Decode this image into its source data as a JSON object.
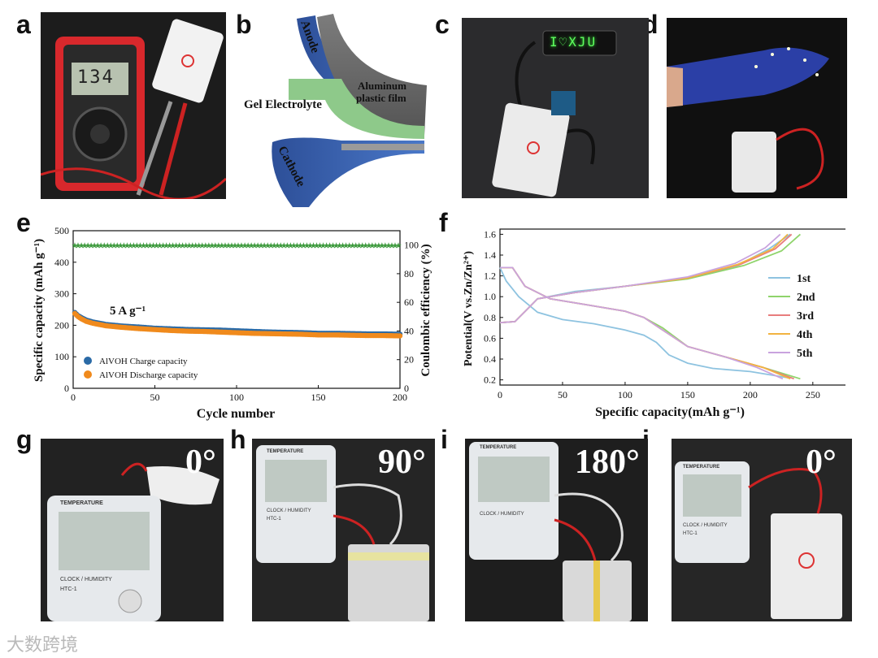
{
  "panels": [
    "a",
    "b",
    "c",
    "d",
    "e",
    "f",
    "g",
    "h",
    "i",
    "j"
  ],
  "panel_a": {
    "display": "134"
  },
  "panel_b": {
    "anode": "Anode",
    "cathode": "Cathode",
    "gel": "Gel Electrolyte",
    "film_line1": "Aluminum",
    "film_line2": "plastic film"
  },
  "panel_c": {
    "led_text": "I♡XJU"
  },
  "panel_g": {
    "angle": "0°",
    "thermo_title": "TEMPERATURE",
    "thermo_sub": "CLOCK / HUMIDITY",
    "thermo_model": "HTC-1"
  },
  "panel_h": {
    "angle": "90°",
    "thermo_title": "TEMPERATURE",
    "thermo_sub": "CLOCK / HUMIDITY",
    "thermo_model": "HTC-1"
  },
  "panel_i": {
    "angle": "180°",
    "thermo_title": "TEMPERATURE",
    "thermo_sub": "CLOCK / HUMIDITY"
  },
  "panel_j": {
    "angle": "0°",
    "thermo_title": "TEMPERATURE",
    "thermo_sub": "CLOCK / HUMIDITY",
    "thermo_model": "HTC-1"
  },
  "watermark": "大数跨境",
  "chart_data": [
    {
      "type": "scatter",
      "panel": "e",
      "xlabel": "Cycle number",
      "ylabel": "Specific capacity (mAh g⁻¹)",
      "ylabel_right": "Coulombic efficiency (%)",
      "xlim": [
        0,
        200
      ],
      "ylim": [
        0,
        500
      ],
      "ylim_right": [
        0,
        110
      ],
      "xticks": [
        0,
        50,
        100,
        150,
        200
      ],
      "yticks": [
        0,
        100,
        200,
        300,
        400,
        500
      ],
      "yticks_right": [
        0,
        20,
        40,
        60,
        80,
        100
      ],
      "annotation": "5 A g⁻¹",
      "legend": [
        "AlVOH Charge capacity",
        "AlVOH Discharge capacity"
      ],
      "series": [
        {
          "name": "AlVOH Charge capacity",
          "color": "#2a6aa6",
          "x": [
            1,
            3,
            5,
            8,
            12,
            20,
            30,
            40,
            50,
            60,
            70,
            80,
            90,
            100,
            110,
            120,
            130,
            140,
            150,
            160,
            170,
            180,
            190,
            200
          ],
          "y": [
            238,
            228,
            222,
            214,
            208,
            200,
            195,
            192,
            188,
            186,
            184,
            183,
            182,
            180,
            178,
            176,
            175,
            174,
            172,
            172,
            171,
            170,
            170,
            169
          ]
        },
        {
          "name": "AlVOH Discharge capacity",
          "color": "#f08a1c",
          "x": [
            1,
            3,
            5,
            8,
            12,
            20,
            30,
            40,
            50,
            60,
            70,
            80,
            90,
            100,
            110,
            120,
            130,
            140,
            150,
            160,
            170,
            180,
            190,
            200
          ],
          "y": [
            240,
            230,
            223,
            215,
            209,
            201,
            196,
            192,
            189,
            186,
            184,
            183,
            181,
            179,
            177,
            176,
            175,
            174,
            172,
            172,
            171,
            170,
            170,
            169
          ]
        },
        {
          "name": "Coulombic efficiency",
          "color": "#3f9b3f",
          "axis": "right",
          "x": [
            1,
            20,
            40,
            60,
            80,
            100,
            120,
            140,
            160,
            180,
            200
          ],
          "y": [
            100,
            100,
            100,
            100,
            100,
            100,
            100,
            100,
            100,
            100,
            100
          ]
        }
      ]
    },
    {
      "type": "line",
      "panel": "f",
      "xlabel": "Specific capacity(mAh g⁻¹)",
      "ylabel": "Potential(V vs.Zn/Zn²⁺)",
      "xlim": [
        0,
        280
      ],
      "ylim": [
        0.15,
        1.65
      ],
      "xticks": [
        0,
        50,
        100,
        150,
        200,
        250
      ],
      "yticks": [
        0.2,
        0.4,
        0.6,
        0.8,
        1.0,
        1.2,
        1.4,
        1.6
      ],
      "legend": [
        "1st",
        "2nd",
        "3rd",
        "4th",
        "5th"
      ],
      "series": [
        {
          "name": "1st",
          "color": "#8ec3e0",
          "discharge": {
            "x": [
              0,
              5,
              15,
              30,
              50,
              75,
              100,
              115,
              125,
              135,
              150,
              170,
              200,
              230
            ],
            "y": [
              1.28,
              1.15,
              1.0,
              0.85,
              0.78,
              0.74,
              0.68,
              0.63,
              0.56,
              0.44,
              0.36,
              0.31,
              0.28,
              0.22
            ]
          },
          "charge": {
            "x": [
              0,
              12,
              30,
              60,
              100,
              150,
              190,
              215,
              232
            ],
            "y": [
              0.75,
              0.76,
              0.98,
              1.05,
              1.1,
              1.18,
              1.3,
              1.46,
              1.6
            ]
          }
        },
        {
          "name": "2nd",
          "color": "#8fd46b",
          "discharge": {
            "x": [
              0,
              10,
              20,
              40,
              70,
              100,
              115,
              130,
              150,
              180,
              210,
              240
            ],
            "y": [
              1.28,
              1.28,
              1.1,
              0.98,
              0.92,
              0.86,
              0.8,
              0.7,
              0.52,
              0.42,
              0.32,
              0.21
            ]
          },
          "charge": {
            "x": [
              0,
              12,
              30,
              60,
              100,
              150,
              195,
              225,
              240
            ],
            "y": [
              0.75,
              0.76,
              0.98,
              1.04,
              1.1,
              1.17,
              1.3,
              1.44,
              1.6
            ]
          }
        },
        {
          "name": "3rd",
          "color": "#e87d7d",
          "discharge": {
            "x": [
              0,
              10,
              20,
              40,
              70,
              100,
              115,
              130,
              150,
              180,
              210,
              235
            ],
            "y": [
              1.28,
              1.28,
              1.1,
              0.98,
              0.92,
              0.86,
              0.8,
              0.68,
              0.52,
              0.42,
              0.32,
              0.21
            ]
          },
          "charge": {
            "x": [
              0,
              12,
              30,
              60,
              100,
              150,
              192,
              220,
              233
            ],
            "y": [
              0.75,
              0.76,
              0.98,
              1.04,
              1.1,
              1.18,
              1.31,
              1.46,
              1.6
            ]
          }
        },
        {
          "name": "4th",
          "color": "#f2b341",
          "discharge": {
            "x": [
              0,
              10,
              20,
              40,
              70,
              100,
              115,
              130,
              150,
              180,
              210,
              232
            ],
            "y": [
              1.28,
              1.28,
              1.1,
              0.98,
              0.92,
              0.86,
              0.8,
              0.68,
              0.52,
              0.42,
              0.32,
              0.21
            ]
          },
          "charge": {
            "x": [
              0,
              12,
              30,
              60,
              100,
              150,
              190,
              218,
              230
            ],
            "y": [
              0.75,
              0.76,
              0.98,
              1.04,
              1.1,
              1.18,
              1.31,
              1.46,
              1.6
            ]
          }
        },
        {
          "name": "5th",
          "color": "#c9a3de",
          "discharge": {
            "x": [
              0,
              10,
              20,
              40,
              70,
              100,
              115,
              130,
              150,
              180,
              205,
              226
            ],
            "y": [
              1.28,
              1.28,
              1.1,
              0.98,
              0.92,
              0.86,
              0.8,
              0.68,
              0.52,
              0.42,
              0.32,
              0.21
            ]
          },
          "charge": {
            "x": [
              0,
              12,
              30,
              60,
              100,
              150,
              188,
              212,
              224
            ],
            "y": [
              0.75,
              0.76,
              0.98,
              1.04,
              1.1,
              1.19,
              1.32,
              1.47,
              1.6
            ]
          }
        }
      ]
    }
  ]
}
